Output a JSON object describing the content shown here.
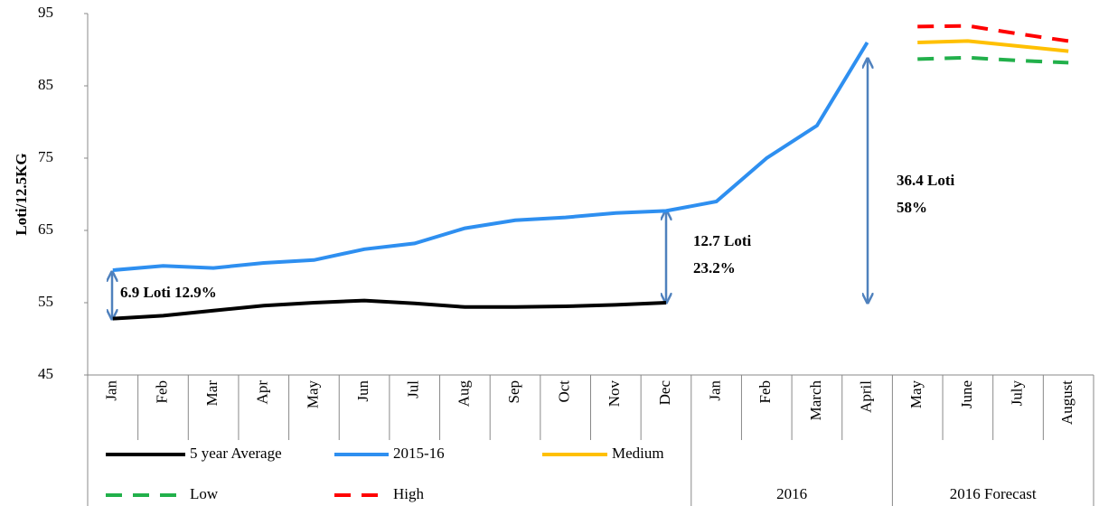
{
  "chart_data": {
    "type": "line",
    "y_label": "Loti/12.5KG",
    "groups": [
      {
        "label": null,
        "categories": [
          "Jan",
          "Feb",
          "Mar",
          "Apr",
          "May",
          "Jun",
          "Jul",
          "Aug",
          "Sep",
          "Oct",
          "Nov",
          "Dec"
        ]
      },
      {
        "label": "2016",
        "categories": [
          "Jan",
          "Feb",
          "March",
          "April"
        ]
      },
      {
        "label": "2016 Forecast",
        "categories": [
          "May",
          "June",
          "July",
          "August"
        ]
      }
    ],
    "series": [
      {
        "name": "5 year Average",
        "color": "#000000",
        "dash": false,
        "values": [
          52.8,
          53.2,
          53.9,
          54.6,
          55.0,
          55.3,
          54.9,
          54.4,
          54.4,
          54.5,
          54.7,
          55.0,
          null,
          null,
          null,
          null,
          null,
          null,
          null,
          null
        ]
      },
      {
        "name": "2015-16",
        "color": "#2e8ff0",
        "dash": false,
        "values": [
          59.5,
          60.1,
          59.8,
          60.5,
          60.9,
          62.4,
          63.2,
          65.3,
          66.4,
          66.8,
          67.4,
          67.7,
          69.0,
          75.0,
          79.5,
          91.0,
          null,
          null,
          null,
          null
        ]
      },
      {
        "name": "Medium",
        "color": "#ffc000",
        "dash": false,
        "values": [
          null,
          null,
          null,
          null,
          null,
          null,
          null,
          null,
          null,
          null,
          null,
          null,
          null,
          null,
          null,
          null,
          91.0,
          91.2,
          90.5,
          89.8
        ]
      },
      {
        "name": "Low",
        "color": "#22b04b",
        "dash": true,
        "values": [
          null,
          null,
          null,
          null,
          null,
          null,
          null,
          null,
          null,
          null,
          null,
          null,
          null,
          null,
          null,
          null,
          88.7,
          88.9,
          88.5,
          88.2
        ]
      },
      {
        "name": "High",
        "color": "#ff0000",
        "dash": true,
        "values": [
          null,
          null,
          null,
          null,
          null,
          null,
          null,
          null,
          null,
          null,
          null,
          null,
          null,
          null,
          null,
          null,
          93.2,
          93.3,
          92.2,
          91.2
        ]
      }
    ],
    "annotations": [
      {
        "lines": [
          "6.9 Loti 12.9%"
        ]
      },
      {
        "lines": [
          "12.7 Loti",
          "23.2%"
        ]
      },
      {
        "lines": [
          "36.4 Loti",
          "58%"
        ]
      }
    ],
    "ylim": [
      45,
      95
    ],
    "yticks": [
      45,
      55,
      65,
      75,
      85,
      95
    ],
    "grid": false
  }
}
